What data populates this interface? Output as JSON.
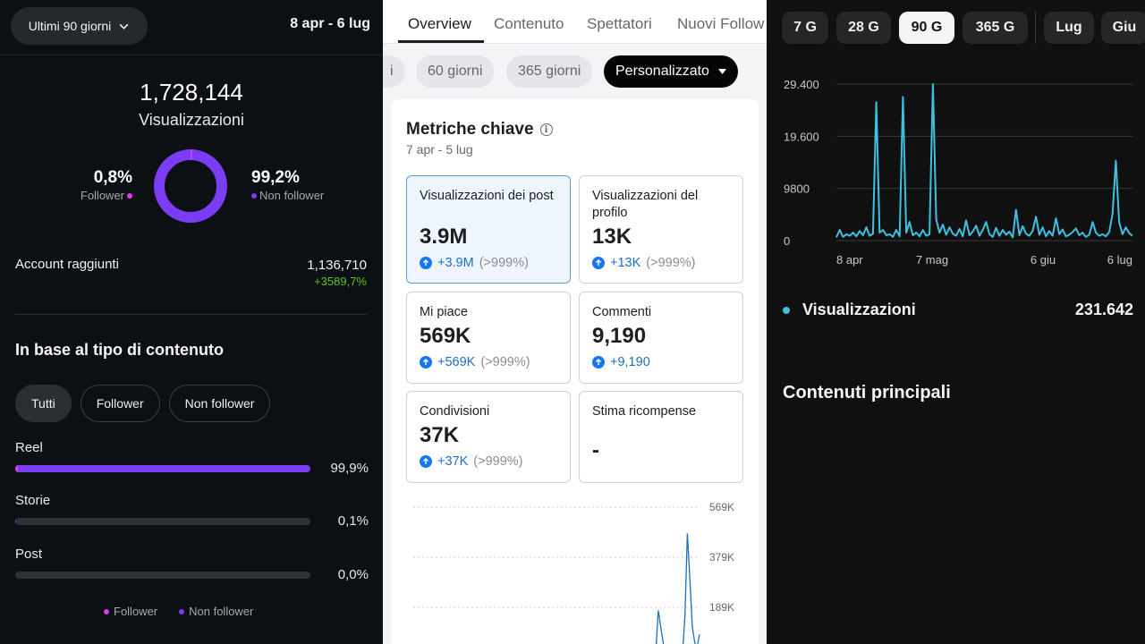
{
  "left": {
    "range_selector": "Ultimi 90 giorni",
    "date_range": "8 apr - 6 lug",
    "views_total": "1,728,144",
    "views_label": "Visualizzazioni",
    "follower_pct": "0,8%",
    "follower_label": "Follower",
    "nonfollower_pct": "99,2%",
    "nonfollower_label": "Non follower",
    "follower_share": 0.008,
    "accounts_reached_label": "Account raggiunti",
    "accounts_reached_value": "1,136,710",
    "accounts_reached_delta": "+3589,7%",
    "section_title": "In base al tipo di contenuto",
    "filters": [
      "Tutti",
      "Follower",
      "Non follower"
    ],
    "content_types": [
      {
        "label": "Reel",
        "pct": "99,9%",
        "share": 0.999
      },
      {
        "label": "Storie",
        "pct": "0,1%",
        "share": 0.001
      },
      {
        "label": "Post",
        "pct": "0,0%",
        "share": 0.0
      }
    ],
    "legend": [
      "Follower",
      "Non follower"
    ],
    "colors": {
      "follower": "#d83ef3",
      "nonfollower": "#7a3cf5",
      "positive": "#58c322"
    }
  },
  "middle": {
    "tabs": [
      "Overview",
      "Contenuto",
      "Spettatori",
      "Nuovi Follow"
    ],
    "periods": [
      "i",
      "60 giorni",
      "365 giorni",
      "Personalizzato"
    ],
    "card_title": "Metriche chiave",
    "card_subtitle": "7 apr - 5 lug",
    "metrics": [
      {
        "label": "Visualizzazioni dei post",
        "value": "3.9M",
        "delta": "+3.9M",
        "delta_extra": "(>999%)"
      },
      {
        "label": "Visualizzazioni del profilo",
        "value": "13K",
        "delta": "+13K",
        "delta_extra": "(>999%)"
      },
      {
        "label": "Mi piace",
        "value": "569K",
        "delta": "+569K",
        "delta_extra": "(>999%)"
      },
      {
        "label": "Commenti",
        "value": "9,190",
        "delta": "+9,190",
        "delta_extra": ""
      },
      {
        "label": "Condivisioni",
        "value": "37K",
        "delta": "+37K",
        "delta_extra": "(>999%)"
      },
      {
        "label": "Stima ricompense",
        "value": "-",
        "delta": "",
        "delta_extra": ""
      }
    ],
    "chart_data": {
      "type": "line",
      "y_ticks": [
        "569K",
        "379K",
        "189K"
      ],
      "ylim": [
        0,
        569000
      ],
      "series": [
        {
          "values": [
            0,
            0,
            0,
            0,
            0,
            0,
            0,
            0,
            0,
            0,
            0,
            0,
            0,
            0,
            0,
            0,
            0,
            0,
            0,
            0,
            0,
            0,
            0,
            0,
            0,
            0,
            0,
            0,
            0,
            0,
            0,
            0,
            0,
            0,
            0,
            0,
            0,
            0,
            0,
            0,
            0,
            0,
            0,
            0,
            0,
            0,
            0,
            0,
            0,
            0,
            0,
            0,
            0,
            0,
            0,
            0,
            2000,
            3000,
            1000,
            0,
            4000,
            40000,
            20000,
            5000,
            2000,
            0,
            0,
            1000,
            3000,
            1000,
            0,
            0,
            0,
            1000,
            5000,
            25000,
            10000,
            3000,
            0,
            1000,
            12000,
            4000,
            3000,
            1000,
            0,
            0,
            1000,
            2000,
            5000,
            30000,
            15000,
            2000,
            8000,
            4000,
            3000,
            2000,
            1000,
            10000,
            5000,
            10000,
            30000,
            180000,
            120000,
            60000,
            20000,
            10000,
            6000,
            3000,
            2000,
            2000,
            5000,
            20000,
            160000,
            470000,
            300000,
            120000,
            60000,
            40000,
            90000
          ]
        }
      ]
    },
    "colors": {
      "line": "#1b6ec2",
      "delta": "#1b6ec2",
      "arrow": "#1877f2"
    }
  },
  "right": {
    "period_chips": [
      "7 G",
      "28 G",
      "90 G",
      "365 G"
    ],
    "month_chips": [
      "Lug",
      "Giu"
    ],
    "active_chip": "90 G",
    "chart_data": {
      "type": "line",
      "y_ticks": [
        "29.400",
        "19.600",
        "9800",
        "0"
      ],
      "ylim": [
        0,
        29400
      ],
      "x_ticks": [
        "8 apr",
        "7 mag",
        "6 giu",
        "6 lug"
      ],
      "series": [
        {
          "name": "Visualizzazioni",
          "values": [
            600,
            2000,
            700,
            1200,
            900,
            1500,
            800,
            1800,
            1000,
            2500,
            900,
            1300,
            26000,
            1500,
            2000,
            1000,
            1200,
            700,
            2000,
            800,
            27000,
            1500,
            3500,
            1000,
            1500,
            800,
            2000,
            900,
            1200,
            29400,
            4000,
            1500,
            3000,
            1100,
            2500,
            1300,
            900,
            2200,
            800,
            3800,
            1000,
            1700,
            2800,
            900,
            2000,
            3500,
            1200,
            700,
            2400,
            900,
            2000,
            1100,
            1700,
            600,
            5800,
            1000,
            2700,
            1300,
            900,
            1800,
            4500,
            1100,
            2500,
            800,
            1800,
            900,
            4200,
            1200,
            2100,
            800,
            1100,
            1600,
            2300,
            1000,
            1500,
            700,
            1100,
            3500,
            1500,
            900,
            1200,
            800,
            1600,
            5000,
            15000,
            3500,
            1200,
            2500,
            1400,
            900
          ]
        }
      ]
    },
    "legend_label": "Visualizzazioni",
    "legend_value": "231.642",
    "section_title": "Contenuti principali",
    "colors": {
      "line": "#3ec1e0"
    }
  }
}
